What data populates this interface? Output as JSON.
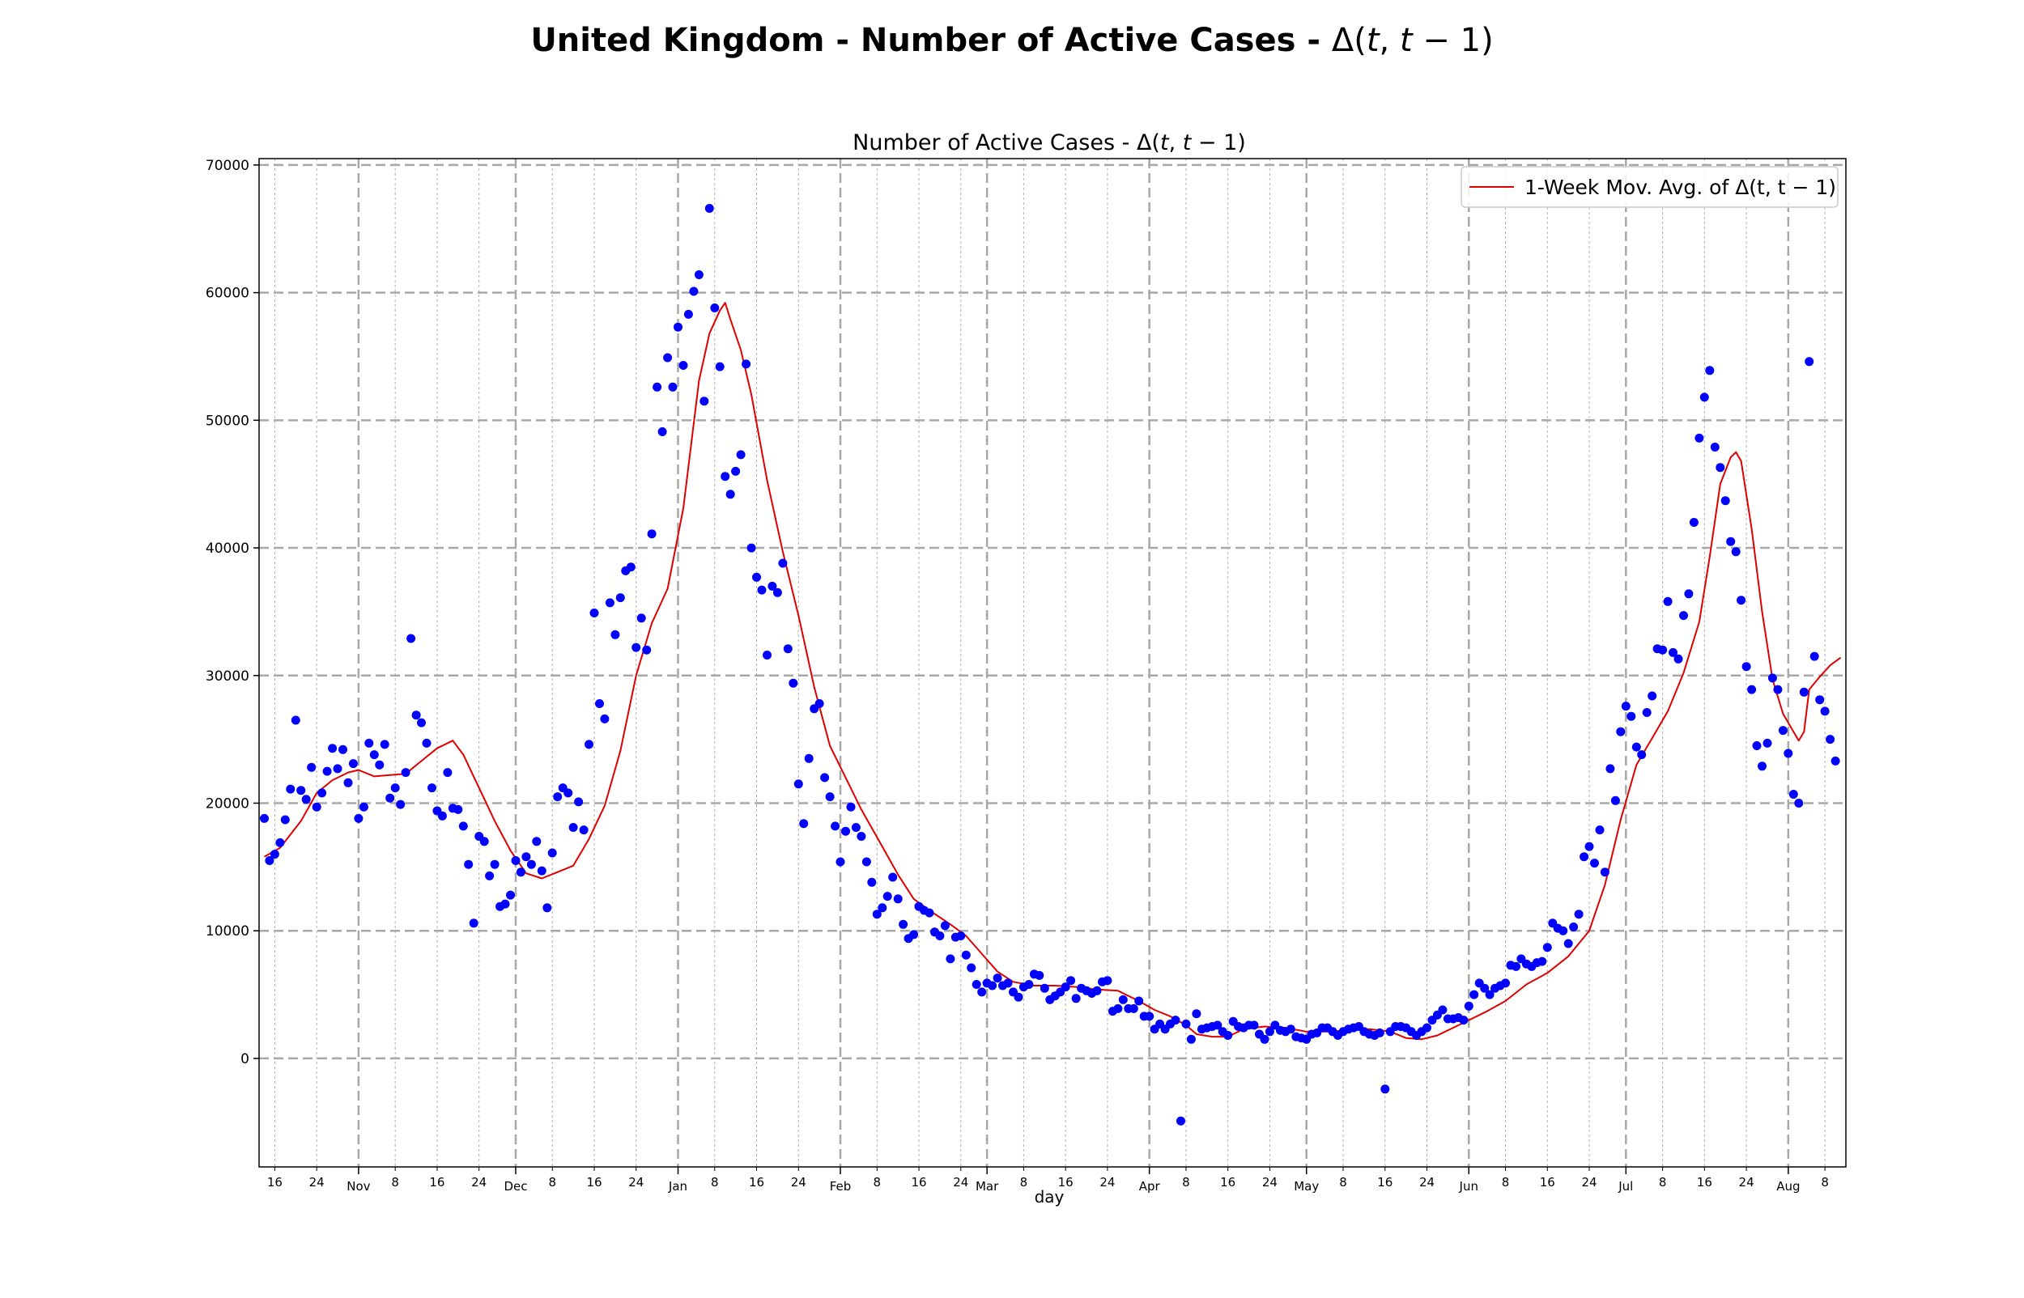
{
  "suptitle": {
    "bold": "United Kingdom - Number of Active Cases - ",
    "delta": "Δ(",
    "t1": "t",
    "comma": ", ",
    "t2": "t",
    "rest": " − 1)"
  },
  "axes_title": {
    "main": "Number of Active Cases - Δ(",
    "t1": "t",
    "comma": ", ",
    "t2": "t",
    "rest": " − 1)"
  },
  "colors": {
    "points": "#0000ff",
    "line": "#e00000",
    "grid": "#b0b0b0"
  },
  "chart_data": {
    "type": "scatter",
    "xlabel": "day",
    "ylabel": "",
    "x_range": [
      "2020-10-13",
      "2021-08-12"
    ],
    "ylim": [
      -8500,
      70500
    ],
    "y_ticks": [
      0,
      10000,
      20000,
      30000,
      40000,
      50000,
      60000,
      70000
    ],
    "grid": true,
    "legend": {
      "placement": "top-right",
      "label": "1-Week Mov. Avg. of Δ(t, t − 1)"
    },
    "x_ticks_major": [
      {
        "date": "2020-11-01",
        "label": "Nov"
      },
      {
        "date": "2020-12-01",
        "label": "Dec"
      },
      {
        "date": "2021-01-01",
        "label": "Jan"
      },
      {
        "date": "2021-02-01",
        "label": "Feb"
      },
      {
        "date": "2021-03-01",
        "label": "Mar"
      },
      {
        "date": "2021-04-01",
        "label": "Apr"
      },
      {
        "date": "2021-05-01",
        "label": "May"
      },
      {
        "date": "2021-06-01",
        "label": "Jun"
      },
      {
        "date": "2021-07-01",
        "label": "Jul"
      },
      {
        "date": "2021-08-01",
        "label": "Aug"
      }
    ],
    "x_ticks_minor": [
      {
        "date": "2020-10-16",
        "label": "16"
      },
      {
        "date": "2020-10-24",
        "label": "24"
      },
      {
        "date": "2020-11-08",
        "label": "8"
      },
      {
        "date": "2020-11-16",
        "label": "16"
      },
      {
        "date": "2020-11-24",
        "label": "24"
      },
      {
        "date": "2020-12-08",
        "label": "8"
      },
      {
        "date": "2020-12-16",
        "label": "16"
      },
      {
        "date": "2020-12-24",
        "label": "24"
      },
      {
        "date": "2021-01-08",
        "label": "8"
      },
      {
        "date": "2021-01-16",
        "label": "16"
      },
      {
        "date": "2021-01-24",
        "label": "24"
      },
      {
        "date": "2021-02-08",
        "label": "8"
      },
      {
        "date": "2021-02-16",
        "label": "16"
      },
      {
        "date": "2021-02-24",
        "label": "24"
      },
      {
        "date": "2021-03-08",
        "label": "8"
      },
      {
        "date": "2021-03-16",
        "label": "16"
      },
      {
        "date": "2021-03-24",
        "label": "24"
      },
      {
        "date": "2021-04-08",
        "label": "8"
      },
      {
        "date": "2021-04-16",
        "label": "16"
      },
      {
        "date": "2021-04-24",
        "label": "24"
      },
      {
        "date": "2021-05-08",
        "label": "8"
      },
      {
        "date": "2021-05-16",
        "label": "16"
      },
      {
        "date": "2021-05-24",
        "label": "24"
      },
      {
        "date": "2021-06-08",
        "label": "8"
      },
      {
        "date": "2021-06-16",
        "label": "16"
      },
      {
        "date": "2021-06-24",
        "label": "24"
      },
      {
        "date": "2021-07-08",
        "label": "8"
      },
      {
        "date": "2021-07-16",
        "label": "16"
      },
      {
        "date": "2021-07-24",
        "label": "24"
      },
      {
        "date": "2021-08-08",
        "label": "8"
      }
    ],
    "series": [
      {
        "type": "scatter",
        "x_start": "2020-10-14",
        "step_days": 1,
        "values": [
          18800,
          15500,
          16000,
          16900,
          18700,
          21100,
          26500,
          21000,
          20300,
          22800,
          19700,
          20800,
          22500,
          24300,
          22700,
          24200,
          21600,
          23100,
          18800,
          19700,
          24700,
          23800,
          23000,
          24600,
          20400,
          21200,
          19900,
          22400,
          32900,
          26900,
          26300,
          24700,
          21200,
          19400,
          19000,
          22400,
          19600,
          19500,
          18200,
          15200,
          10600,
          17400,
          17000,
          14300,
          15200,
          11900,
          12100,
          12800,
          15500,
          14600,
          15800,
          15200,
          17000,
          14700,
          11800,
          16100,
          20500,
          21200,
          20800,
          18100,
          20100,
          17900,
          24600,
          34900,
          27800,
          26600,
          35700,
          33200,
          36100,
          38200,
          38500,
          32200,
          34500,
          32000,
          41100,
          52600,
          49100,
          54900,
          52600,
          57300,
          54300,
          58300,
          60100,
          61400,
          51500,
          66600,
          58800,
          54200,
          45600,
          44200,
          46000,
          47300,
          54400,
          40000,
          37700,
          36700,
          31600,
          37000,
          36500,
          38800,
          32100,
          29400,
          21500,
          18400,
          23500,
          27400,
          27800,
          22000,
          20500,
          18200,
          15400,
          17800,
          19700,
          18100,
          17400,
          15400,
          13800,
          11300,
          11800,
          12700,
          14200,
          12500,
          10500,
          9400,
          9700,
          11900,
          11600,
          11400,
          9900,
          9600,
          10400,
          7800,
          9500,
          9600,
          8100,
          7100,
          5800,
          5200,
          5900,
          5700,
          6300,
          5700,
          5900,
          5200,
          4800,
          5600,
          5800,
          6600,
          6500,
          5500,
          4600,
          4900,
          5200,
          5600,
          6100,
          4700,
          5500,
          5300,
          5100,
          5300,
          6000,
          6100,
          3700,
          3900,
          4600,
          3900,
          3900,
          4500,
          3300,
          3300,
          2300,
          2700,
          2300,
          2700,
          3000,
          -4900,
          2700,
          1500,
          3500,
          2300,
          2400,
          2500,
          2600,
          2100,
          1800,
          2900,
          2500,
          2400,
          2600,
          2600,
          1900,
          1500,
          2100,
          2600,
          2200,
          2100,
          2300,
          1700,
          1600,
          1500,
          1900,
          2000,
          2400,
          2400,
          2100,
          1800,
          2100,
          2300,
          2400,
          2500,
          2100,
          1900,
          1800,
          2000,
          -2400,
          2100,
          2500,
          2500,
          2400,
          2100,
          1800,
          2100,
          2400,
          3000,
          3400,
          3800,
          3100,
          3100,
          3200,
          3000,
          4100,
          5000,
          5900,
          5500,
          5000,
          5500,
          5700,
          5900,
          7300,
          7200,
          7800,
          7400,
          7200,
          7500,
          7600,
          8700,
          10600,
          10200,
          10000,
          9000,
          10300,
          11300,
          15800,
          16600,
          15300,
          17900,
          14600,
          22700,
          20200,
          25600,
          27600,
          26800,
          24400,
          23800,
          27100,
          28400,
          32100,
          32000,
          35800,
          31800,
          31300,
          34700,
          36400,
          42000,
          48600,
          51800,
          53900,
          47900,
          46300,
          43700,
          40500,
          39700,
          35900,
          30700,
          28900,
          24500,
          22900,
          24700,
          29800,
          28900,
          25700,
          23900,
          20700,
          20000,
          28700,
          54600,
          31500,
          28100,
          27200,
          25000,
          23300
        ]
      },
      {
        "type": "line",
        "name": "1-Week Mov. Avg. of Δ(t, t − 1)",
        "points": [
          [
            "2020-10-14",
            15800
          ],
          [
            "2020-10-17",
            16500
          ],
          [
            "2020-10-21",
            18600
          ],
          [
            "2020-10-24",
            20800
          ],
          [
            "2020-10-27",
            21800
          ],
          [
            "2020-10-30",
            22400
          ],
          [
            "2020-11-01",
            22600
          ],
          [
            "2020-11-04",
            22100
          ],
          [
            "2020-11-07",
            22200
          ],
          [
            "2020-11-10",
            22300
          ],
          [
            "2020-11-13",
            23300
          ],
          [
            "2020-11-16",
            24300
          ],
          [
            "2020-11-19",
            24900
          ],
          [
            "2020-11-21",
            23800
          ],
          [
            "2020-11-24",
            21200
          ],
          [
            "2020-11-27",
            18600
          ],
          [
            "2020-11-30",
            16300
          ],
          [
            "2020-12-03",
            14500
          ],
          [
            "2020-12-06",
            14100
          ],
          [
            "2020-12-09",
            14600
          ],
          [
            "2020-12-12",
            15100
          ],
          [
            "2020-12-15",
            17200
          ],
          [
            "2020-12-18",
            19800
          ],
          [
            "2020-12-21",
            24100
          ],
          [
            "2020-12-24",
            30000
          ],
          [
            "2020-12-27",
            34100
          ],
          [
            "2020-12-30",
            36800
          ],
          [
            "2021-01-02",
            43100
          ],
          [
            "2021-01-05",
            53100
          ],
          [
            "2021-01-07",
            56800
          ],
          [
            "2021-01-09",
            58600
          ],
          [
            "2021-01-10",
            59200
          ],
          [
            "2021-01-11",
            57900
          ],
          [
            "2021-01-13",
            55500
          ],
          [
            "2021-01-15",
            52000
          ],
          [
            "2021-01-18",
            45300
          ],
          [
            "2021-01-21",
            39700
          ],
          [
            "2021-01-24",
            34700
          ],
          [
            "2021-01-27",
            29100
          ],
          [
            "2021-01-30",
            24500
          ],
          [
            "2021-02-02",
            22000
          ],
          [
            "2021-02-05",
            19500
          ],
          [
            "2021-02-09",
            16600
          ],
          [
            "2021-02-12",
            14400
          ],
          [
            "2021-02-15",
            12500
          ],
          [
            "2021-02-18",
            11600
          ],
          [
            "2021-02-22",
            10500
          ],
          [
            "2021-02-25",
            9600
          ],
          [
            "2021-02-28",
            8200
          ],
          [
            "2021-03-03",
            6800
          ],
          [
            "2021-03-06",
            6000
          ],
          [
            "2021-03-10",
            5700
          ],
          [
            "2021-03-14",
            5700
          ],
          [
            "2021-03-18",
            5600
          ],
          [
            "2021-03-22",
            5400
          ],
          [
            "2021-03-26",
            5300
          ],
          [
            "2021-03-30",
            4500
          ],
          [
            "2021-04-02",
            3800
          ],
          [
            "2021-04-05",
            3300
          ],
          [
            "2021-04-08",
            2600
          ],
          [
            "2021-04-10",
            1900
          ],
          [
            "2021-04-13",
            1700
          ],
          [
            "2021-04-16",
            1700
          ],
          [
            "2021-04-19",
            2300
          ],
          [
            "2021-04-23",
            2500
          ],
          [
            "2021-04-27",
            2400
          ],
          [
            "2021-05-01",
            2100
          ],
          [
            "2021-05-05",
            2100
          ],
          [
            "2021-05-09",
            2200
          ],
          [
            "2021-05-13",
            2300
          ],
          [
            "2021-05-17",
            2100
          ],
          [
            "2021-05-20",
            1600
          ],
          [
            "2021-05-23",
            1500
          ],
          [
            "2021-05-26",
            1800
          ],
          [
            "2021-05-29",
            2400
          ],
          [
            "2021-06-01",
            3000
          ],
          [
            "2021-06-04",
            3600
          ],
          [
            "2021-06-08",
            4500
          ],
          [
            "2021-06-12",
            5800
          ],
          [
            "2021-06-16",
            6700
          ],
          [
            "2021-06-20",
            8000
          ],
          [
            "2021-06-24",
            10000
          ],
          [
            "2021-06-27",
            13600
          ],
          [
            "2021-06-30",
            18700
          ],
          [
            "2021-07-03",
            23000
          ],
          [
            "2021-07-06",
            25100
          ],
          [
            "2021-07-09",
            27200
          ],
          [
            "2021-07-12",
            30200
          ],
          [
            "2021-07-15",
            34200
          ],
          [
            "2021-07-17",
            39300
          ],
          [
            "2021-07-19",
            45000
          ],
          [
            "2021-07-21",
            47100
          ],
          [
            "2021-07-22",
            47500
          ],
          [
            "2021-07-23",
            46800
          ],
          [
            "2021-07-25",
            41500
          ],
          [
            "2021-07-27",
            35000
          ],
          [
            "2021-07-29",
            29700
          ],
          [
            "2021-07-31",
            27000
          ],
          [
            "2021-08-02",
            25600
          ],
          [
            "2021-08-03",
            24900
          ],
          [
            "2021-08-04",
            25600
          ],
          [
            "2021-08-05",
            28900
          ],
          [
            "2021-08-07",
            29900
          ],
          [
            "2021-08-09",
            30800
          ],
          [
            "2021-08-11",
            31400
          ]
        ]
      }
    ]
  }
}
